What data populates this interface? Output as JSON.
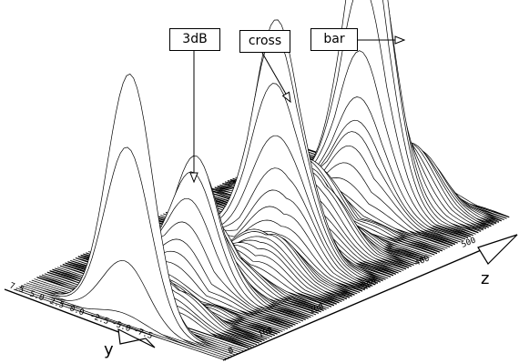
{
  "chart_data": {
    "type": "surface-waterfall",
    "axes": {
      "y": {
        "label": "y",
        "ticks": [
          "7.5",
          "5.0",
          "2.5",
          "0.0",
          "-2.5",
          "-5.0",
          "-7.5"
        ]
      },
      "z": {
        "label": "z",
        "ticks": [
          "0",
          "100",
          "200",
          "300",
          "400",
          "500"
        ]
      }
    },
    "annotations": [
      {
        "label": "3dB",
        "target": "small peak near z≈150"
      },
      {
        "label": "cross",
        "target": "peak near z≈300"
      },
      {
        "label": "bar",
        "target": "tallest peak near z≈480"
      }
    ],
    "peaks": [
      {
        "z": 20,
        "y": 0.0,
        "height": 1.0
      },
      {
        "z": 150,
        "y": 0.0,
        "height": 0.45
      },
      {
        "z": 300,
        "y": 0.0,
        "height": 0.75
      },
      {
        "z": 480,
        "y": 0.0,
        "height": 1.15
      }
    ]
  },
  "colors": {
    "line": "#000000",
    "fill": "#ffffff",
    "background": "#ffffff"
  }
}
